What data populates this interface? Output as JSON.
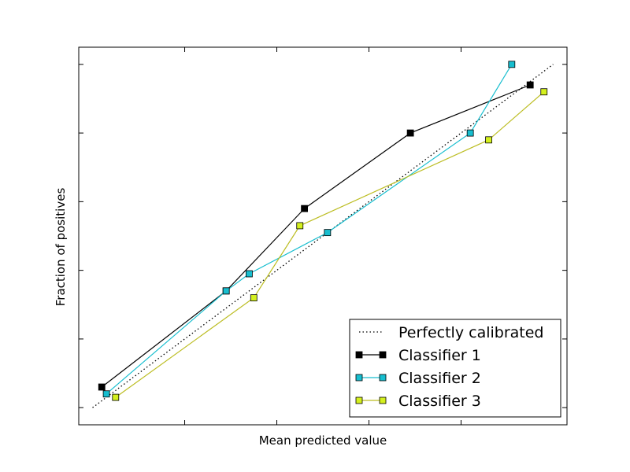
{
  "chart_data": {
    "type": "line",
    "title": "",
    "xlabel": "Mean predicted value",
    "ylabel": "Fraction of positives",
    "xlim": [
      -0.03,
      1.03
    ],
    "ylim": [
      -0.05,
      1.05
    ],
    "ytick_values": [
      0.0,
      0.2,
      0.4,
      0.6,
      0.8,
      1.0
    ],
    "xtick_values": [
      0.2,
      0.4,
      0.6,
      0.8
    ],
    "grid": false,
    "legend_position": "lower-right",
    "series": [
      {
        "name": "Perfectly calibrated",
        "style": "dotted",
        "color": "#000000",
        "marker": "none",
        "x": [
          0.0,
          1.0
        ],
        "y": [
          0.0,
          1.0
        ]
      },
      {
        "name": "Classifier 1",
        "style": "solid",
        "color": "#000000",
        "marker": "square",
        "marker_fill": "#000000",
        "x": [
          0.02,
          0.29,
          0.46,
          0.69,
          0.95
        ],
        "y": [
          0.06,
          0.34,
          0.58,
          0.8,
          0.94
        ]
      },
      {
        "name": "Classifier 2",
        "style": "solid",
        "color": "#17becf",
        "marker": "square",
        "marker_fill": "#17becf",
        "x": [
          0.03,
          0.29,
          0.34,
          0.51,
          0.82,
          0.91
        ],
        "y": [
          0.04,
          0.34,
          0.39,
          0.51,
          0.8,
          1.0
        ]
      },
      {
        "name": "Classifier 3",
        "style": "solid",
        "color": "#bcbd22",
        "marker": "square",
        "marker_fill": "#d4f01e",
        "x": [
          0.05,
          0.35,
          0.45,
          0.86,
          0.98
        ],
        "y": [
          0.03,
          0.32,
          0.53,
          0.78,
          0.92
        ]
      }
    ]
  }
}
